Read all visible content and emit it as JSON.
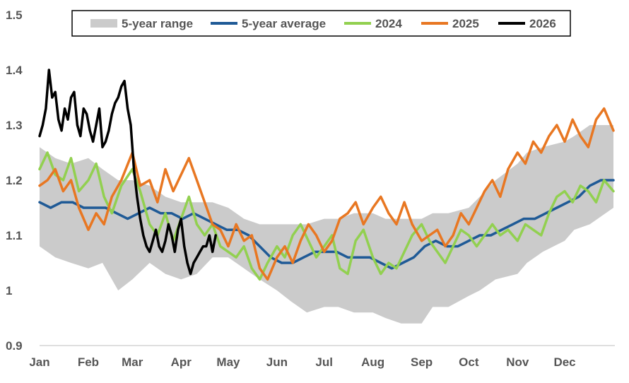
{
  "chart_data": {
    "type": "line",
    "title": "",
    "xlabel": "",
    "ylabel": "",
    "ylim": [
      0.9,
      1.5
    ],
    "yticks": [
      0.9,
      1,
      1.1,
      1.2,
      1.3,
      1.4,
      1.5
    ],
    "ytick_labels": [
      "0.9",
      "1",
      "1.1",
      "1.2",
      "1.3",
      "1.4",
      "1.5"
    ],
    "xlim": [
      0,
      365
    ],
    "months": [
      {
        "label": "Jan",
        "day": 0
      },
      {
        "label": "Feb",
        "day": 31
      },
      {
        "label": "Mar",
        "day": 59
      },
      {
        "label": "Apr",
        "day": 90
      },
      {
        "label": "May",
        "day": 120
      },
      {
        "label": "Jun",
        "day": 151
      },
      {
        "label": "Jul",
        "day": 181
      },
      {
        "label": "Aug",
        "day": 212
      },
      {
        "label": "Sep",
        "day": 243
      },
      {
        "label": "Oct",
        "day": 273
      },
      {
        "label": "Nov",
        "day": 304
      },
      {
        "label": "Dec",
        "day": 334
      }
    ],
    "legend": {
      "position": "top",
      "entries": [
        {
          "name": "5-year range",
          "color": "#cbcbcb",
          "kind": "band"
        },
        {
          "name": "5-year average",
          "color": "#1f5a96",
          "kind": "line"
        },
        {
          "name": "2024",
          "color": "#92d050",
          "kind": "line"
        },
        {
          "name": "2025",
          "color": "#e87722",
          "kind": "line"
        },
        {
          "name": "2026",
          "color": "#000000",
          "kind": "line"
        }
      ]
    },
    "range_band": {
      "name": "5-year range",
      "color": "#cbcbcb",
      "x": [
        0,
        10,
        20,
        31,
        40,
        50,
        59,
        70,
        80,
        90,
        100,
        110,
        120,
        130,
        140,
        151,
        160,
        170,
        181,
        190,
        200,
        212,
        220,
        230,
        243,
        250,
        260,
        273,
        280,
        290,
        304,
        310,
        320,
        334,
        340,
        350,
        360,
        365
      ],
      "low": [
        1.08,
        1.06,
        1.05,
        1.04,
        1.05,
        1.0,
        1.02,
        1.05,
        1.03,
        1.02,
        1.03,
        1.06,
        1.06,
        1.04,
        1.02,
        1.0,
        0.98,
        0.96,
        0.97,
        0.97,
        0.96,
        0.96,
        0.95,
        0.94,
        0.94,
        0.97,
        0.97,
        0.99,
        1.0,
        1.02,
        1.03,
        1.05,
        1.07,
        1.09,
        1.11,
        1.12,
        1.14,
        1.15
      ],
      "high": [
        1.26,
        1.24,
        1.23,
        1.24,
        1.22,
        1.2,
        1.2,
        1.19,
        1.17,
        1.16,
        1.16,
        1.16,
        1.15,
        1.13,
        1.12,
        1.12,
        1.12,
        1.12,
        1.13,
        1.13,
        1.14,
        1.14,
        1.13,
        1.13,
        1.13,
        1.14,
        1.14,
        1.15,
        1.17,
        1.2,
        1.23,
        1.25,
        1.26,
        1.27,
        1.28,
        1.3,
        1.3,
        1.3
      ]
    },
    "series": [
      {
        "name": "5-year average",
        "color": "#1f5a96",
        "x": [
          0,
          7,
          14,
          21,
          28,
          35,
          42,
          49,
          56,
          63,
          70,
          77,
          84,
          91,
          98,
          105,
          112,
          119,
          126,
          133,
          140,
          147,
          154,
          161,
          168,
          175,
          182,
          189,
          196,
          203,
          210,
          217,
          224,
          231,
          238,
          245,
          252,
          259,
          266,
          273,
          280,
          287,
          294,
          301,
          308,
          315,
          322,
          329,
          336,
          343,
          350,
          357,
          365
        ],
        "values": [
          1.16,
          1.15,
          1.16,
          1.16,
          1.15,
          1.15,
          1.15,
          1.14,
          1.13,
          1.14,
          1.15,
          1.14,
          1.14,
          1.13,
          1.14,
          1.13,
          1.12,
          1.11,
          1.11,
          1.1,
          1.08,
          1.06,
          1.05,
          1.05,
          1.06,
          1.07,
          1.07,
          1.07,
          1.06,
          1.06,
          1.06,
          1.05,
          1.04,
          1.05,
          1.06,
          1.08,
          1.09,
          1.08,
          1.08,
          1.09,
          1.1,
          1.1,
          1.11,
          1.12,
          1.13,
          1.13,
          1.14,
          1.15,
          1.16,
          1.17,
          1.19,
          1.2,
          1.2
        ]
      },
      {
        "name": "2024",
        "color": "#92d050",
        "x": [
          0,
          5,
          10,
          15,
          20,
          25,
          31,
          36,
          41,
          46,
          52,
          59,
          64,
          70,
          75,
          80,
          85,
          90,
          95,
          100,
          105,
          110,
          115,
          120,
          125,
          130,
          135,
          140,
          145,
          151,
          156,
          161,
          166,
          171,
          176,
          181,
          186,
          191,
          196,
          201,
          206,
          212,
          217,
          222,
          227,
          232,
          237,
          243,
          248,
          253,
          258,
          263,
          268,
          273,
          278,
          283,
          288,
          293,
          298,
          304,
          309,
          314,
          319,
          324,
          329,
          334,
          339,
          344,
          349,
          354,
          359,
          365
        ],
        "values": [
          1.22,
          1.25,
          1.21,
          1.2,
          1.24,
          1.18,
          1.2,
          1.23,
          1.17,
          1.14,
          1.19,
          1.22,
          1.18,
          1.12,
          1.1,
          1.14,
          1.09,
          1.13,
          1.17,
          1.12,
          1.1,
          1.12,
          1.08,
          1.07,
          1.06,
          1.08,
          1.04,
          1.02,
          1.05,
          1.08,
          1.06,
          1.1,
          1.12,
          1.09,
          1.06,
          1.08,
          1.1,
          1.04,
          1.03,
          1.09,
          1.11,
          1.06,
          1.03,
          1.05,
          1.04,
          1.07,
          1.1,
          1.12,
          1.09,
          1.07,
          1.05,
          1.08,
          1.11,
          1.1,
          1.08,
          1.1,
          1.12,
          1.1,
          1.11,
          1.09,
          1.12,
          1.11,
          1.1,
          1.14,
          1.17,
          1.18,
          1.16,
          1.19,
          1.18,
          1.16,
          1.2,
          1.18
        ]
      },
      {
        "name": "2025",
        "color": "#e87722",
        "x": [
          0,
          5,
          10,
          15,
          20,
          25,
          31,
          36,
          41,
          46,
          52,
          59,
          64,
          70,
          75,
          80,
          85,
          90,
          95,
          100,
          105,
          110,
          115,
          120,
          125,
          130,
          135,
          140,
          145,
          151,
          156,
          161,
          166,
          171,
          176,
          181,
          186,
          191,
          196,
          201,
          206,
          212,
          217,
          222,
          227,
          232,
          237,
          243,
          248,
          253,
          258,
          263,
          268,
          273,
          278,
          283,
          288,
          293,
          298,
          304,
          309,
          314,
          319,
          324,
          329,
          334,
          339,
          344,
          349,
          354,
          359,
          365
        ],
        "values": [
          1.19,
          1.2,
          1.22,
          1.18,
          1.2,
          1.15,
          1.11,
          1.14,
          1.12,
          1.17,
          1.2,
          1.25,
          1.19,
          1.2,
          1.16,
          1.22,
          1.18,
          1.21,
          1.24,
          1.2,
          1.16,
          1.12,
          1.11,
          1.08,
          1.12,
          1.09,
          1.1,
          1.04,
          1.02,
          1.06,
          1.08,
          1.05,
          1.09,
          1.12,
          1.1,
          1.07,
          1.09,
          1.13,
          1.14,
          1.16,
          1.12,
          1.15,
          1.17,
          1.14,
          1.12,
          1.16,
          1.12,
          1.09,
          1.1,
          1.11,
          1.08,
          1.1,
          1.14,
          1.12,
          1.15,
          1.18,
          1.2,
          1.17,
          1.22,
          1.25,
          1.23,
          1.27,
          1.25,
          1.28,
          1.3,
          1.27,
          1.31,
          1.28,
          1.26,
          1.31,
          1.33,
          1.29
        ]
      },
      {
        "name": "2026",
        "color": "#000000",
        "x": [
          0,
          2,
          4,
          6,
          8,
          10,
          12,
          14,
          16,
          18,
          20,
          22,
          24,
          26,
          28,
          30,
          32,
          34,
          36,
          38,
          40,
          42,
          44,
          46,
          48,
          50,
          52,
          54,
          56,
          58,
          60,
          62,
          64,
          66,
          68,
          70,
          72,
          74,
          76,
          78,
          80,
          82,
          84,
          86,
          88,
          90,
          92,
          94,
          96,
          98,
          100,
          102,
          104,
          106,
          108,
          110,
          112
        ],
        "values": [
          1.28,
          1.3,
          1.33,
          1.4,
          1.35,
          1.36,
          1.31,
          1.29,
          1.33,
          1.31,
          1.35,
          1.36,
          1.3,
          1.28,
          1.33,
          1.32,
          1.29,
          1.27,
          1.3,
          1.33,
          1.26,
          1.27,
          1.29,
          1.32,
          1.34,
          1.35,
          1.37,
          1.38,
          1.33,
          1.3,
          1.22,
          1.17,
          1.13,
          1.1,
          1.08,
          1.07,
          1.09,
          1.11,
          1.08,
          1.07,
          1.09,
          1.12,
          1.1,
          1.07,
          1.11,
          1.13,
          1.08,
          1.05,
          1.03,
          1.05,
          1.06,
          1.07,
          1.08,
          1.08,
          1.1,
          1.07,
          1.1
        ]
      }
    ]
  }
}
